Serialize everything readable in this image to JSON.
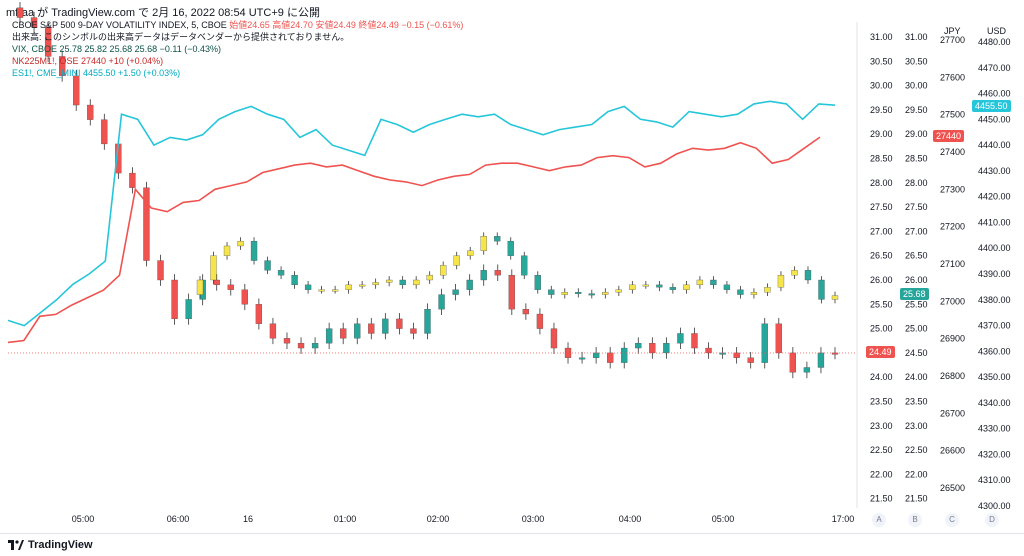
{
  "header": {
    "text": "mf-aa が TradingView.com で 2月 16, 2022 08:54 UTC+9 に公開"
  },
  "legend": {
    "main_title": "CBOE S&P 500 9-DAY VOLATILITY INDEX, 5, CBOE",
    "main_ohlc": "始値24.65 高値24.70 安値24.49 終値24.49",
    "main_change": "−0.15 (−0.61%)",
    "notice": "出来高: このシンボルの出来高データはデータベンダーから提供されておりません。",
    "vix": "VIX, CBOE 25.78 25.82 25.68 25.68 −0.11 (−0.43%)",
    "nk": "NK225M1!, OSE 27440 +10 (+0.04%)",
    "es": "ES1!, CME_MINI 4455.50 +1.50 (+0.03%)"
  },
  "axes": {
    "a_ticks": [
      "31.00",
      "30.50",
      "30.00",
      "29.50",
      "29.00",
      "28.50",
      "28.00",
      "27.50",
      "27.00",
      "26.50",
      "26.00",
      "25.50",
      "25.00",
      "24.50",
      "24.00",
      "23.50",
      "23.00",
      "22.50",
      "22.00",
      "21.50"
    ],
    "b_ticks": [
      "31.00",
      "30.50",
      "30.00",
      "29.50",
      "29.00",
      "28.50",
      "28.00",
      "27.50",
      "27.00",
      "26.50",
      "26.00",
      "25.50",
      "25.00",
      "24.50",
      "24.00",
      "23.50",
      "23.00",
      "22.50",
      "22.00",
      "21.50"
    ],
    "c_header": "JPY",
    "c_ticks": [
      "27700",
      "27600",
      "27500",
      "27400",
      "27300",
      "27200",
      "27100",
      "27000",
      "26900",
      "26800",
      "26700",
      "26600",
      "26500"
    ],
    "d_header": "USD",
    "d_ticks": [
      "4480.00",
      "4470.00",
      "4460.00",
      "4450.00",
      "4440.00",
      "4430.00",
      "4420.00",
      "4410.00",
      "4400.00",
      "4390.00",
      "4380.00",
      "4370.00",
      "4360.00",
      "4350.00",
      "4340.00",
      "4330.00",
      "4320.00",
      "4310.00",
      "4300.00"
    ],
    "time_ticks": [
      "05:00",
      "06:00",
      "16",
      "01:00",
      "02:00",
      "03:00",
      "04:00",
      "05:00",
      "17:00"
    ],
    "scale_buttons": [
      "A",
      "B",
      "C",
      "D"
    ]
  },
  "tags": {
    "main_last": "24.49",
    "vix_last": "25.68",
    "nk_last": "27440",
    "es_last": "4455.50"
  },
  "colors": {
    "up": "#26a69a",
    "down": "#ef5350",
    "wick": "#333333",
    "es_line": "#26c6da",
    "nk_line": "#ef5350",
    "vix_up": "#2aa79b",
    "vix_down": "#ef5350",
    "yellow": "#f5e44a"
  },
  "footer": {
    "brand": "TradingView"
  },
  "chart_data": {
    "type": "line",
    "title": "CBOE S&P 500 9-DAY VOLATILITY INDEX, 5, CBOE",
    "x_labels": [
      "05:00",
      "06:00",
      "16",
      "01:00",
      "02:00",
      "03:00",
      "04:00",
      "05:00",
      "17:00"
    ],
    "series": [
      {
        "name": "ES1!, CME_MINI",
        "axis": "D",
        "values": [
          4372,
          4370,
          4375,
          4380,
          4386,
          4390,
          4395,
          4452,
          4450,
          4440,
          4443,
          4442,
          4444,
          4450,
          4453,
          4455,
          4452,
          4450,
          4443,
          4446,
          4440,
          4438,
          4436,
          4450,
          4448,
          4445,
          4448,
          4450,
          4452,
          4451,
          4452,
          4448,
          4446,
          4444,
          4446,
          4447,
          4448,
          4453,
          4455,
          4450,
          4449,
          4447,
          4453,
          4452,
          4451,
          4452,
          4456,
          4457,
          4456,
          4450,
          4456,
          4455.5
        ]
      },
      {
        "name": "NK225M1!, OSE",
        "axis": "C",
        "values": [
          26890,
          26895,
          26960,
          26965,
          26990,
          27010,
          27030,
          27070,
          27300,
          27250,
          27240,
          27265,
          27270,
          27300,
          27310,
          27320,
          27345,
          27355,
          27365,
          27370,
          27360,
          27365,
          27350,
          27335,
          27325,
          27320,
          27310,
          27325,
          27335,
          27340,
          27365,
          27370,
          27370,
          27360,
          27350,
          27360,
          27365,
          27385,
          27390,
          27385,
          27360,
          27370,
          27395,
          27410,
          27405,
          27410,
          27425,
          27410,
          27370,
          27380,
          27410,
          27440
        ]
      }
    ],
    "candles_main": {
      "name": "CBOE S&P 500 9-DAY VOLATILITY INDEX",
      "axis": "A",
      "close_values": [
        31.4,
        31.2,
        30.6,
        30.2,
        29.6,
        29.3,
        28.8,
        28.2,
        27.9,
        26.4,
        26.0,
        25.2,
        25.6,
        26.0,
        25.9,
        25.8,
        25.5,
        25.1,
        24.8,
        24.7,
        24.6,
        24.7,
        25.0,
        24.8,
        25.1,
        24.9,
        25.2,
        25.0,
        24.9,
        25.4,
        25.7,
        25.8,
        26.0,
        26.2,
        26.1,
        25.4,
        25.3,
        25.0,
        24.6,
        24.4,
        24.4,
        24.5,
        24.3,
        24.6,
        24.7,
        24.5,
        24.7,
        24.9,
        24.6,
        24.5,
        24.5,
        24.4,
        24.3,
        25.1,
        24.5,
        24.1,
        24.2,
        24.5,
        24.49
      ],
      "last": 24.49
    },
    "candles_vix": {
      "name": "VIX, CBOE",
      "axis": "B",
      "close_values": [
        26.0,
        26.5,
        26.7,
        26.8,
        26.4,
        26.2,
        26.1,
        25.9,
        25.8,
        25.8,
        25.8,
        25.9,
        25.9,
        25.95,
        26.0,
        25.9,
        26.0,
        26.1,
        26.3,
        26.5,
        26.6,
        26.9,
        26.8,
        26.5,
        26.1,
        25.8,
        25.7,
        25.75,
        25.72,
        25.7,
        25.75,
        25.8,
        25.9,
        25.9,
        25.85,
        25.8,
        25.9,
        26.0,
        25.9,
        25.8,
        25.7,
        25.75,
        25.85,
        26.1,
        26.2,
        26.0,
        25.6,
        25.68
      ],
      "last": 25.68
    },
    "ylim_A": [
      21.5,
      31.0
    ],
    "ylim_C": [
      26500,
      27700
    ],
    "ylim_D": [
      4300,
      4480
    ]
  }
}
